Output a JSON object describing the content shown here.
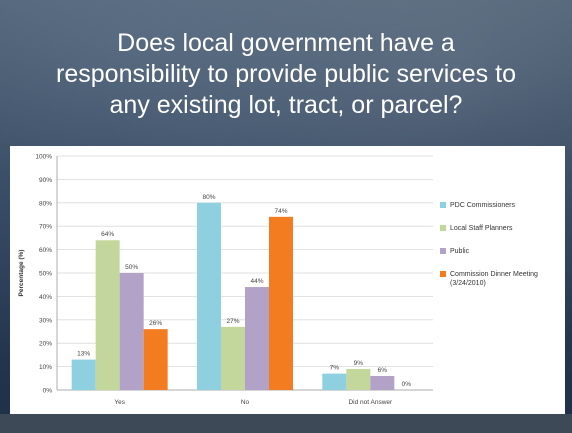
{
  "slide": {
    "title_lines": [
      "Does local government have a",
      "responsibility to provide public services to",
      "any existing lot, tract, or parcel?"
    ]
  },
  "chart_data": {
    "type": "bar",
    "categories": [
      "Yes",
      "No",
      "Did not Answer"
    ],
    "series": [
      {
        "name": "PDC Commissioners",
        "values": [
          13,
          80,
          7
        ],
        "labels": [
          "13%",
          "80%",
          "7%"
        ],
        "color": "#8fd0e0"
      },
      {
        "name": "Local Staff Planners",
        "values": [
          64,
          27,
          9
        ],
        "labels": [
          "64%",
          "27%",
          "9%"
        ],
        "color": "#c3d69b"
      },
      {
        "name": "Public",
        "values": [
          50,
          44,
          6
        ],
        "labels": [
          "50%",
          "44%",
          "6%"
        ],
        "color": "#b3a2c7"
      },
      {
        "name": "Commission Dinner Meeting (3/24/2010)",
        "values": [
          26,
          74,
          0
        ],
        "labels": [
          "26%",
          "74%",
          "0%"
        ],
        "color": "#f47c20"
      }
    ],
    "ylabel": "Percentage (%)",
    "ylim": [
      0,
      100
    ],
    "yticks": [
      "0%",
      "10%",
      "20%",
      "30%",
      "40%",
      "50%",
      "60%",
      "70%",
      "80%",
      "90%",
      "100%"
    ],
    "grid": true,
    "legend_position": "right"
  }
}
